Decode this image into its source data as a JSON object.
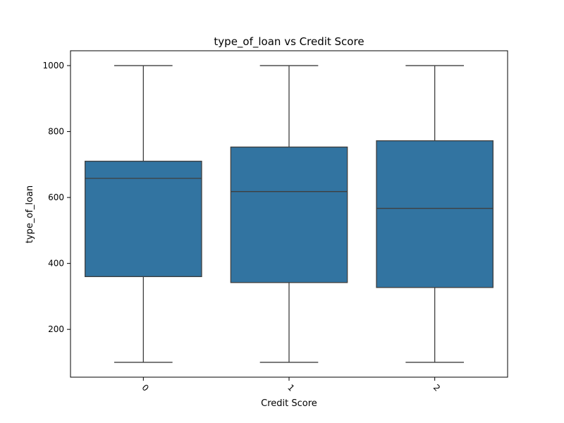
{
  "chart_data": {
    "type": "box",
    "title": "type_of_loan vs Credit Score",
    "xlabel": "Credit Score",
    "ylabel": "type_of_loan",
    "categories": [
      "0",
      "1",
      "2"
    ],
    "boxes": [
      {
        "category": "0",
        "whisker_low": 100,
        "q1": 360,
        "median": 658,
        "q3": 710,
        "whisker_high": 1000
      },
      {
        "category": "1",
        "whisker_low": 100,
        "q1": 342,
        "median": 618,
        "q3": 753,
        "whisker_high": 1000
      },
      {
        "category": "2",
        "whisker_low": 100,
        "q1": 327,
        "median": 567,
        "q3": 772,
        "whisker_high": 1000
      }
    ],
    "ylim": [
      55,
      1045
    ],
    "yticks": [
      200,
      400,
      600,
      800,
      1000
    ],
    "xtick_rotation": 45,
    "grid": false,
    "box_color": "#3274a1",
    "line_color": "#3f3f3f"
  }
}
